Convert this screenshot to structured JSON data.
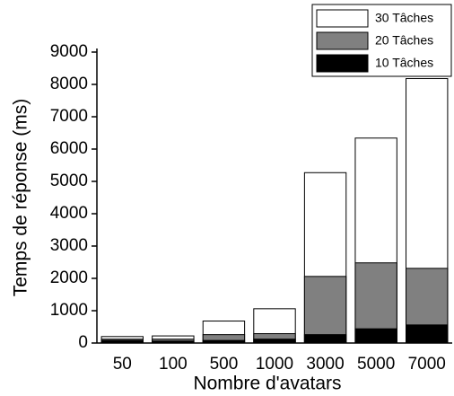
{
  "chart_data": {
    "type": "bar",
    "xlabel": "Nombre d'avatars",
    "ylabel": "Temps de réponse (ms)",
    "categories": [
      "50",
      "100",
      "500",
      "1000",
      "3000",
      "5000",
      "7000"
    ],
    "series": [
      {
        "name": "30 Tâches",
        "color": "#ffffff",
        "values": [
          200,
          220,
          680,
          1060,
          5270,
          6340,
          8180
        ]
      },
      {
        "name": "20 Tâches",
        "color": "#808080",
        "values": [
          120,
          120,
          260,
          290,
          2060,
          2480,
          2310
        ]
      },
      {
        "name": "10 Tâches",
        "color": "#000000",
        "values": [
          80,
          60,
          80,
          120,
          260,
          440,
          560
        ]
      }
    ],
    "ylim": [
      0,
      9000
    ],
    "yticks": [
      0,
      1000,
      2000,
      3000,
      4000,
      5000,
      6000,
      7000,
      8000,
      9000
    ],
    "grid": false,
    "legend": "top-right"
  }
}
